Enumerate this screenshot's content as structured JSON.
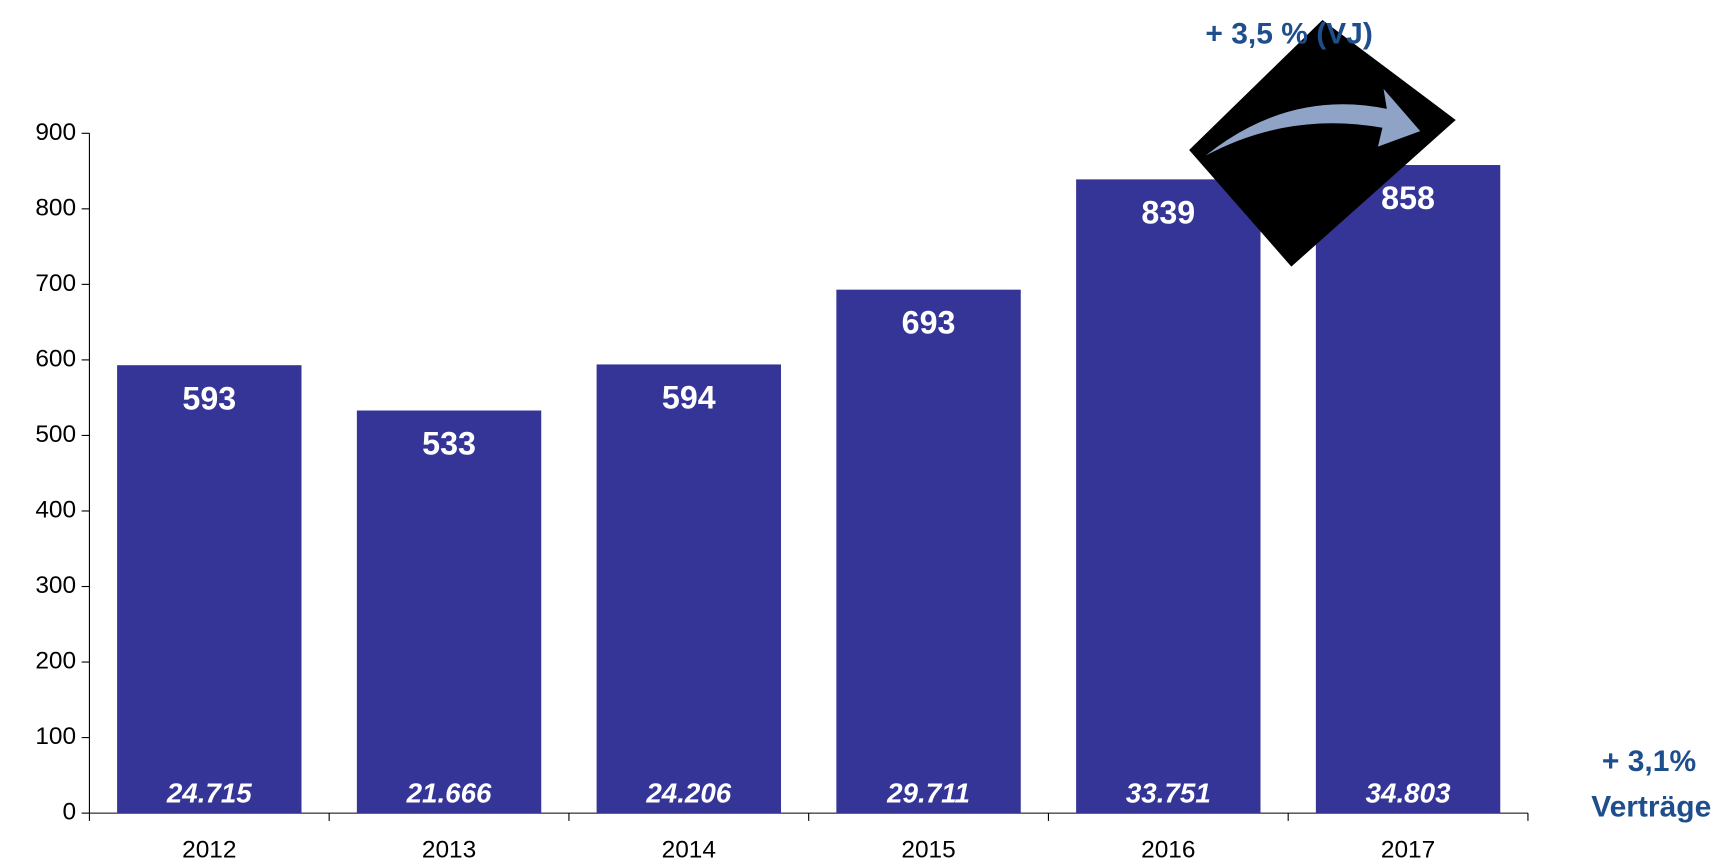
{
  "chart_data": {
    "type": "bar",
    "categories": [
      "2012",
      "2013",
      "2014",
      "2015",
      "2016",
      "2017"
    ],
    "values": [
      593,
      533,
      594,
      693,
      839,
      858
    ],
    "bar_labels": [
      "24.715",
      "21.666",
      "24.206",
      "29.711",
      "33.751",
      "34.803"
    ],
    "color": "#353597",
    "ylim": [
      0,
      900
    ],
    "yticks": [
      0,
      100,
      200,
      300,
      400,
      500,
      600,
      700,
      800,
      900
    ],
    "grid": false,
    "annotations": [
      "+ 3,5 % (VJ)",
      "+ 3,1%",
      "Verträge"
    ]
  }
}
